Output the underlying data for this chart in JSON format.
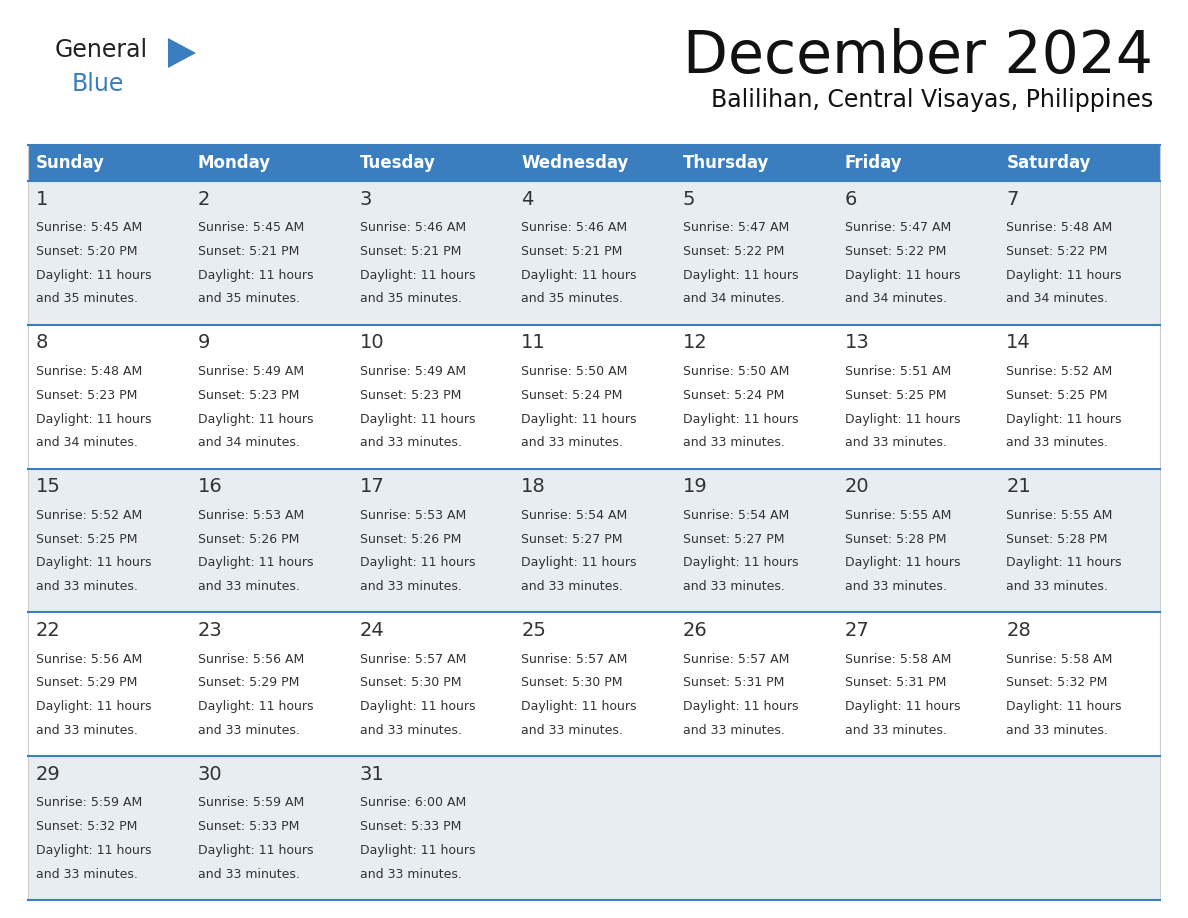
{
  "title": "December 2024",
  "subtitle": "Balilihan, Central Visayas, Philippines",
  "days_of_week": [
    "Sunday",
    "Monday",
    "Tuesday",
    "Wednesday",
    "Thursday",
    "Friday",
    "Saturday"
  ],
  "header_bg": "#3a7ebf",
  "header_text": "#ffffff",
  "row_bg_odd": "#e8edf2",
  "row_bg_even": "#ffffff",
  "cell_border": "#3a7ebf",
  "day_num_color": "#333333",
  "info_color": "#333333",
  "calendar_data": [
    [
      {
        "day": 1,
        "sunrise": "5:45 AM",
        "sunset": "5:20 PM",
        "daylight_hours": 11,
        "daylight_minutes": 35
      },
      {
        "day": 2,
        "sunrise": "5:45 AM",
        "sunset": "5:21 PM",
        "daylight_hours": 11,
        "daylight_minutes": 35
      },
      {
        "day": 3,
        "sunrise": "5:46 AM",
        "sunset": "5:21 PM",
        "daylight_hours": 11,
        "daylight_minutes": 35
      },
      {
        "day": 4,
        "sunrise": "5:46 AM",
        "sunset": "5:21 PM",
        "daylight_hours": 11,
        "daylight_minutes": 35
      },
      {
        "day": 5,
        "sunrise": "5:47 AM",
        "sunset": "5:22 PM",
        "daylight_hours": 11,
        "daylight_minutes": 34
      },
      {
        "day": 6,
        "sunrise": "5:47 AM",
        "sunset": "5:22 PM",
        "daylight_hours": 11,
        "daylight_minutes": 34
      },
      {
        "day": 7,
        "sunrise": "5:48 AM",
        "sunset": "5:22 PM",
        "daylight_hours": 11,
        "daylight_minutes": 34
      }
    ],
    [
      {
        "day": 8,
        "sunrise": "5:48 AM",
        "sunset": "5:23 PM",
        "daylight_hours": 11,
        "daylight_minutes": 34
      },
      {
        "day": 9,
        "sunrise": "5:49 AM",
        "sunset": "5:23 PM",
        "daylight_hours": 11,
        "daylight_minutes": 34
      },
      {
        "day": 10,
        "sunrise": "5:49 AM",
        "sunset": "5:23 PM",
        "daylight_hours": 11,
        "daylight_minutes": 33
      },
      {
        "day": 11,
        "sunrise": "5:50 AM",
        "sunset": "5:24 PM",
        "daylight_hours": 11,
        "daylight_minutes": 33
      },
      {
        "day": 12,
        "sunrise": "5:50 AM",
        "sunset": "5:24 PM",
        "daylight_hours": 11,
        "daylight_minutes": 33
      },
      {
        "day": 13,
        "sunrise": "5:51 AM",
        "sunset": "5:25 PM",
        "daylight_hours": 11,
        "daylight_minutes": 33
      },
      {
        "day": 14,
        "sunrise": "5:52 AM",
        "sunset": "5:25 PM",
        "daylight_hours": 11,
        "daylight_minutes": 33
      }
    ],
    [
      {
        "day": 15,
        "sunrise": "5:52 AM",
        "sunset": "5:25 PM",
        "daylight_hours": 11,
        "daylight_minutes": 33
      },
      {
        "day": 16,
        "sunrise": "5:53 AM",
        "sunset": "5:26 PM",
        "daylight_hours": 11,
        "daylight_minutes": 33
      },
      {
        "day": 17,
        "sunrise": "5:53 AM",
        "sunset": "5:26 PM",
        "daylight_hours": 11,
        "daylight_minutes": 33
      },
      {
        "day": 18,
        "sunrise": "5:54 AM",
        "sunset": "5:27 PM",
        "daylight_hours": 11,
        "daylight_minutes": 33
      },
      {
        "day": 19,
        "sunrise": "5:54 AM",
        "sunset": "5:27 PM",
        "daylight_hours": 11,
        "daylight_minutes": 33
      },
      {
        "day": 20,
        "sunrise": "5:55 AM",
        "sunset": "5:28 PM",
        "daylight_hours": 11,
        "daylight_minutes": 33
      },
      {
        "day": 21,
        "sunrise": "5:55 AM",
        "sunset": "5:28 PM",
        "daylight_hours": 11,
        "daylight_minutes": 33
      }
    ],
    [
      {
        "day": 22,
        "sunrise": "5:56 AM",
        "sunset": "5:29 PM",
        "daylight_hours": 11,
        "daylight_minutes": 33
      },
      {
        "day": 23,
        "sunrise": "5:56 AM",
        "sunset": "5:29 PM",
        "daylight_hours": 11,
        "daylight_minutes": 33
      },
      {
        "day": 24,
        "sunrise": "5:57 AM",
        "sunset": "5:30 PM",
        "daylight_hours": 11,
        "daylight_minutes": 33
      },
      {
        "day": 25,
        "sunrise": "5:57 AM",
        "sunset": "5:30 PM",
        "daylight_hours": 11,
        "daylight_minutes": 33
      },
      {
        "day": 26,
        "sunrise": "5:57 AM",
        "sunset": "5:31 PM",
        "daylight_hours": 11,
        "daylight_minutes": 33
      },
      {
        "day": 27,
        "sunrise": "5:58 AM",
        "sunset": "5:31 PM",
        "daylight_hours": 11,
        "daylight_minutes": 33
      },
      {
        "day": 28,
        "sunrise": "5:58 AM",
        "sunset": "5:32 PM",
        "daylight_hours": 11,
        "daylight_minutes": 33
      }
    ],
    [
      {
        "day": 29,
        "sunrise": "5:59 AM",
        "sunset": "5:32 PM",
        "daylight_hours": 11,
        "daylight_minutes": 33
      },
      {
        "day": 30,
        "sunrise": "5:59 AM",
        "sunset": "5:33 PM",
        "daylight_hours": 11,
        "daylight_minutes": 33
      },
      {
        "day": 31,
        "sunrise": "6:00 AM",
        "sunset": "5:33 PM",
        "daylight_hours": 11,
        "daylight_minutes": 33
      },
      null,
      null,
      null,
      null
    ]
  ]
}
